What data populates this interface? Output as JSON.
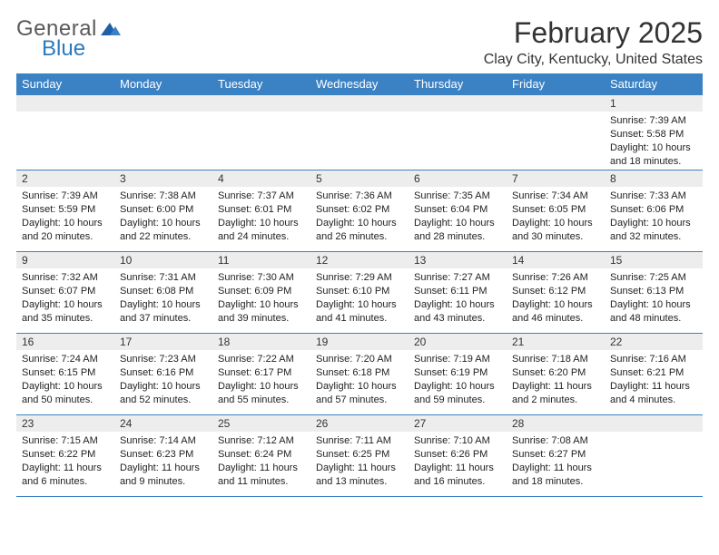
{
  "logo": {
    "text1": "General",
    "text2": "Blue",
    "color_gray": "#5a5a5a",
    "color_blue": "#2a7ac0"
  },
  "title": "February 2025",
  "location": "Clay City, Kentucky, United States",
  "style": {
    "header_bg": "#3b82c4",
    "header_fg": "#ffffff",
    "daynum_bg": "#ededed",
    "border_color": "#3b82c4",
    "page_bg": "#ffffff",
    "text_color": "#222222",
    "title_fontsize": 32,
    "location_fontsize": 16,
    "dayhead_fontsize": 13,
    "daynum_fontsize": 12,
    "body_fontsize": 11
  },
  "weekdays": [
    "Sunday",
    "Monday",
    "Tuesday",
    "Wednesday",
    "Thursday",
    "Friday",
    "Saturday"
  ],
  "weeks": [
    [
      null,
      null,
      null,
      null,
      null,
      null,
      {
        "n": "1",
        "sr": "Sunrise: 7:39 AM",
        "ss": "Sunset: 5:58 PM",
        "dl": "Daylight: 10 hours and 18 minutes."
      }
    ],
    [
      {
        "n": "2",
        "sr": "Sunrise: 7:39 AM",
        "ss": "Sunset: 5:59 PM",
        "dl": "Daylight: 10 hours and 20 minutes."
      },
      {
        "n": "3",
        "sr": "Sunrise: 7:38 AM",
        "ss": "Sunset: 6:00 PM",
        "dl": "Daylight: 10 hours and 22 minutes."
      },
      {
        "n": "4",
        "sr": "Sunrise: 7:37 AM",
        "ss": "Sunset: 6:01 PM",
        "dl": "Daylight: 10 hours and 24 minutes."
      },
      {
        "n": "5",
        "sr": "Sunrise: 7:36 AM",
        "ss": "Sunset: 6:02 PM",
        "dl": "Daylight: 10 hours and 26 minutes."
      },
      {
        "n": "6",
        "sr": "Sunrise: 7:35 AM",
        "ss": "Sunset: 6:04 PM",
        "dl": "Daylight: 10 hours and 28 minutes."
      },
      {
        "n": "7",
        "sr": "Sunrise: 7:34 AM",
        "ss": "Sunset: 6:05 PM",
        "dl": "Daylight: 10 hours and 30 minutes."
      },
      {
        "n": "8",
        "sr": "Sunrise: 7:33 AM",
        "ss": "Sunset: 6:06 PM",
        "dl": "Daylight: 10 hours and 32 minutes."
      }
    ],
    [
      {
        "n": "9",
        "sr": "Sunrise: 7:32 AM",
        "ss": "Sunset: 6:07 PM",
        "dl": "Daylight: 10 hours and 35 minutes."
      },
      {
        "n": "10",
        "sr": "Sunrise: 7:31 AM",
        "ss": "Sunset: 6:08 PM",
        "dl": "Daylight: 10 hours and 37 minutes."
      },
      {
        "n": "11",
        "sr": "Sunrise: 7:30 AM",
        "ss": "Sunset: 6:09 PM",
        "dl": "Daylight: 10 hours and 39 minutes."
      },
      {
        "n": "12",
        "sr": "Sunrise: 7:29 AM",
        "ss": "Sunset: 6:10 PM",
        "dl": "Daylight: 10 hours and 41 minutes."
      },
      {
        "n": "13",
        "sr": "Sunrise: 7:27 AM",
        "ss": "Sunset: 6:11 PM",
        "dl": "Daylight: 10 hours and 43 minutes."
      },
      {
        "n": "14",
        "sr": "Sunrise: 7:26 AM",
        "ss": "Sunset: 6:12 PM",
        "dl": "Daylight: 10 hours and 46 minutes."
      },
      {
        "n": "15",
        "sr": "Sunrise: 7:25 AM",
        "ss": "Sunset: 6:13 PM",
        "dl": "Daylight: 10 hours and 48 minutes."
      }
    ],
    [
      {
        "n": "16",
        "sr": "Sunrise: 7:24 AM",
        "ss": "Sunset: 6:15 PM",
        "dl": "Daylight: 10 hours and 50 minutes."
      },
      {
        "n": "17",
        "sr": "Sunrise: 7:23 AM",
        "ss": "Sunset: 6:16 PM",
        "dl": "Daylight: 10 hours and 52 minutes."
      },
      {
        "n": "18",
        "sr": "Sunrise: 7:22 AM",
        "ss": "Sunset: 6:17 PM",
        "dl": "Daylight: 10 hours and 55 minutes."
      },
      {
        "n": "19",
        "sr": "Sunrise: 7:20 AM",
        "ss": "Sunset: 6:18 PM",
        "dl": "Daylight: 10 hours and 57 minutes."
      },
      {
        "n": "20",
        "sr": "Sunrise: 7:19 AM",
        "ss": "Sunset: 6:19 PM",
        "dl": "Daylight: 10 hours and 59 minutes."
      },
      {
        "n": "21",
        "sr": "Sunrise: 7:18 AM",
        "ss": "Sunset: 6:20 PM",
        "dl": "Daylight: 11 hours and 2 minutes."
      },
      {
        "n": "22",
        "sr": "Sunrise: 7:16 AM",
        "ss": "Sunset: 6:21 PM",
        "dl": "Daylight: 11 hours and 4 minutes."
      }
    ],
    [
      {
        "n": "23",
        "sr": "Sunrise: 7:15 AM",
        "ss": "Sunset: 6:22 PM",
        "dl": "Daylight: 11 hours and 6 minutes."
      },
      {
        "n": "24",
        "sr": "Sunrise: 7:14 AM",
        "ss": "Sunset: 6:23 PM",
        "dl": "Daylight: 11 hours and 9 minutes."
      },
      {
        "n": "25",
        "sr": "Sunrise: 7:12 AM",
        "ss": "Sunset: 6:24 PM",
        "dl": "Daylight: 11 hours and 11 minutes."
      },
      {
        "n": "26",
        "sr": "Sunrise: 7:11 AM",
        "ss": "Sunset: 6:25 PM",
        "dl": "Daylight: 11 hours and 13 minutes."
      },
      {
        "n": "27",
        "sr": "Sunrise: 7:10 AM",
        "ss": "Sunset: 6:26 PM",
        "dl": "Daylight: 11 hours and 16 minutes."
      },
      {
        "n": "28",
        "sr": "Sunrise: 7:08 AM",
        "ss": "Sunset: 6:27 PM",
        "dl": "Daylight: 11 hours and 18 minutes."
      },
      null
    ]
  ]
}
